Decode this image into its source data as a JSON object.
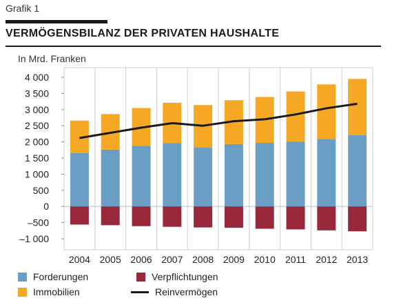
{
  "header": {
    "graf_label": "Grafik 1",
    "title": "VERMÖGENSBILANZ DER PRIVATEN HAUSHALTE",
    "unit": "In Mrd. Franken"
  },
  "colors": {
    "forderungen": "#6a9ec5",
    "immobilien": "#f5a823",
    "verpflichtungen": "#98283a",
    "reinvermoegen": "#1a1a1a",
    "grid": "#cfcfcf",
    "axis_text": "#222222"
  },
  "chart_data": {
    "type": "bar",
    "stacked": true,
    "categories": [
      "2004",
      "2005",
      "2006",
      "2007",
      "2008",
      "2009",
      "2010",
      "2011",
      "2012",
      "2013"
    ],
    "ylim": [
      -1000,
      4000
    ],
    "yticks": [
      {
        "value": 4000,
        "label": "4 000"
      },
      {
        "value": 3500,
        "label": "3 500"
      },
      {
        "value": 3000,
        "label": "3 000"
      },
      {
        "value": 2500,
        "label": "2 500"
      },
      {
        "value": 2000,
        "label": "2 000"
      },
      {
        "value": 1500,
        "label": "1 500"
      },
      {
        "value": 1000,
        "label": "1 000"
      },
      {
        "value": 500,
        "label": "500"
      },
      {
        "value": 0,
        "label": "0"
      },
      {
        "value": -500,
        "label": "–500"
      },
      {
        "value": -1000,
        "label": "–1 000"
      }
    ],
    "series": [
      {
        "name": "Forderungen",
        "key": "forderungen",
        "values": [
          1650,
          1760,
          1880,
          1960,
          1820,
          1930,
          1970,
          2010,
          2090,
          2210
        ]
      },
      {
        "name": "Immobilien",
        "key": "immobilien",
        "values": [
          1010,
          1100,
          1170,
          1250,
          1320,
          1360,
          1420,
          1550,
          1690,
          1740
        ]
      },
      {
        "name": "Verpflichtungen",
        "key": "verpflichtungen",
        "values": [
          -560,
          -580,
          -610,
          -630,
          -650,
          -660,
          -690,
          -710,
          -740,
          -770
        ]
      },
      {
        "name": "Reinvermögen",
        "key": "reinvermoegen",
        "type": "line",
        "values": [
          2120,
          2280,
          2440,
          2580,
          2500,
          2640,
          2700,
          2850,
          3040,
          3180
        ]
      }
    ],
    "legend_position": "bottom",
    "grid": true
  },
  "legend": [
    {
      "label": "Forderungen",
      "key": "forderungen",
      "kind": "box"
    },
    {
      "label": "Verpflichtungen",
      "key": "verpflichtungen",
      "kind": "box"
    },
    {
      "label": "Immobilien",
      "key": "immobilien",
      "kind": "box"
    },
    {
      "label": "Reinvermögen",
      "key": "reinvermoegen",
      "kind": "line"
    }
  ]
}
